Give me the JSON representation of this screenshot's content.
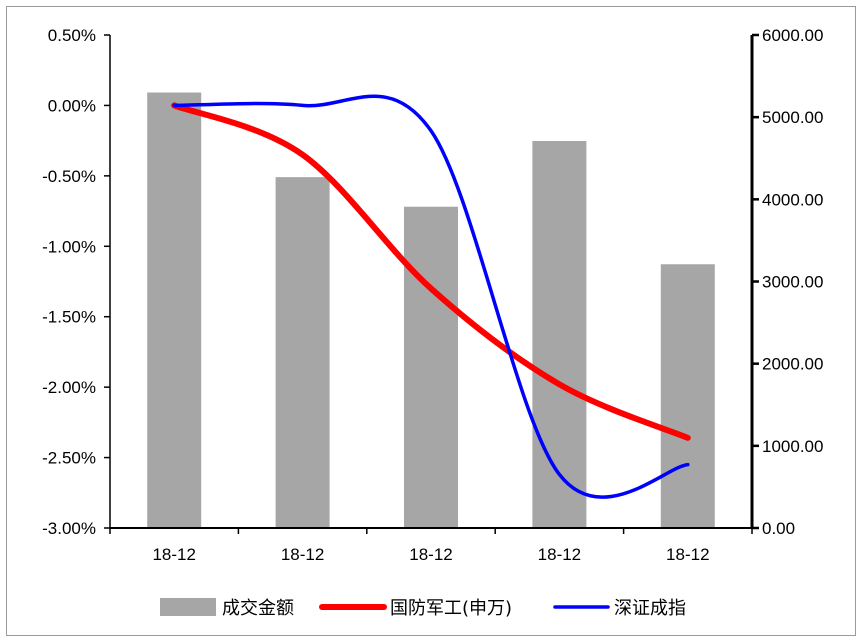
{
  "chart_data": {
    "type": "bar-line-combo",
    "categories": [
      "18-12",
      "18-12",
      "18-12",
      "18-12",
      "18-12"
    ],
    "series": [
      {
        "name": "成交金额",
        "type": "bar",
        "axis": "right",
        "color": "#a6a6a6",
        "values": [
          5300,
          4270,
          3910,
          4710,
          3210
        ]
      },
      {
        "name": "国防军工(申万)",
        "type": "line",
        "axis": "left",
        "color": "#ff0000",
        "values": [
          0.0,
          -0.35,
          -1.3,
          -1.98,
          -2.36
        ]
      },
      {
        "name": "深证成指",
        "type": "line",
        "axis": "left",
        "color": "#0000ff",
        "values": [
          0.0,
          0.0,
          -0.18,
          -2.62,
          -2.55
        ]
      }
    ],
    "left_axis": {
      "ylim": [
        -3.0,
        0.5
      ],
      "ticks": [
        "0.50%",
        "0.00%",
        "-0.50%",
        "-1.00%",
        "-1.50%",
        "-2.00%",
        "-2.50%",
        "-3.00%"
      ],
      "tick_values": [
        0.5,
        0.0,
        -0.5,
        -1.0,
        -1.5,
        -2.0,
        -2.5,
        -3.0
      ]
    },
    "right_axis": {
      "ylim": [
        0,
        6000
      ],
      "ticks": [
        "6000.00",
        "5000.00",
        "4000.00",
        "3000.00",
        "2000.00",
        "1000.00",
        "0.00"
      ],
      "tick_values": [
        6000,
        5000,
        4000,
        3000,
        2000,
        1000,
        0
      ]
    },
    "legend": {
      "placement": "bottom-center",
      "items": [
        "成交金额",
        "国防军工(申万)",
        "深证成指"
      ]
    },
    "grid": false,
    "title": "",
    "xlabel": "",
    "ylabel": ""
  }
}
